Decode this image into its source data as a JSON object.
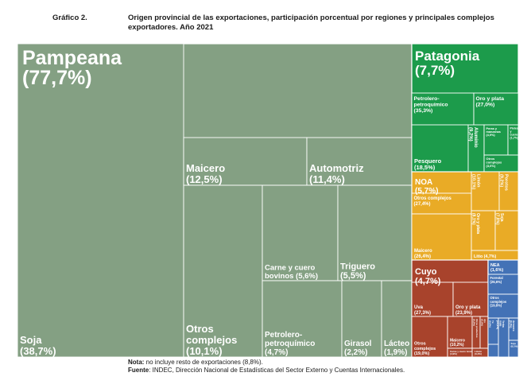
{
  "header": {
    "label": "Gráfico 2.",
    "title": "Origen provincial de las exportaciones, participación porcentual por regiones y principales complejos exportadores. Año 2021"
  },
  "footer": {
    "note_label": "Nota:",
    "note_text": " no incluye resto de exportaciones (8,8%).",
    "source_label": "Fuente",
    "source_text": ": INDEC, Dirección Nacional de Estadísticas del Sector Externo y Cuentas Internacionales."
  },
  "chart_data": {
    "type": "treemap",
    "title": "Origen provincial de las exportaciones, participación porcentual por regiones y principales complejos exportadores. Año 2021",
    "colors": {
      "Pampeana": "#84a083",
      "Patagonia": "#1c9b4b",
      "NOA": "#e9ab26",
      "Cuyo": "#a8432c",
      "NEA": "#4372b6"
    },
    "regions": [
      {
        "name": "Pampeana",
        "value": 77.7,
        "label": "Pampeana\n(77,7%)",
        "children": [
          {
            "name": "Soja",
            "value": 38.7,
            "label": "Soja\n(38,7%)"
          },
          {
            "name": "Maicero",
            "value": 12.5,
            "label": "Maicero\n(12,5%)"
          },
          {
            "name": "Automotriz",
            "value": 11.4,
            "label": "Automotriz\n(11,4%)"
          },
          {
            "name": "Otros complejos",
            "value": 10.1,
            "label": "Otros\ncomplejos\n(10,1%)"
          },
          {
            "name": "Carne y cuero bovinos",
            "value": 5.6,
            "label": "Carne y cuero\nbovinos (5,6%)"
          },
          {
            "name": "Triguero",
            "value": 5.5,
            "label": "Triguero\n(5,5%)"
          },
          {
            "name": "Petrolero-petroquímico",
            "value": 4.7,
            "label": "Petrolero-\npetroquímico\n(4,7%)"
          },
          {
            "name": "Girasol",
            "value": 2.2,
            "label": "Girasol\n(2,2%)"
          },
          {
            "name": "Lácteo",
            "value": 1.9,
            "label": "Lácteo\n(1,9%)"
          }
        ]
      },
      {
        "name": "Patagonia",
        "value": 7.7,
        "label": "Patagonia\n(7,7%)",
        "children": [
          {
            "name": "Petrolero-petroquímico",
            "value": 35.3,
            "label": "Petrolero-\npetroquímico\n(35,3%)"
          },
          {
            "name": "Oro y plata",
            "value": 27.0,
            "label": "Oro y plata\n(27,0%)"
          },
          {
            "name": "Pesquero",
            "value": 18.5,
            "label": "Pesquero\n(18,5%)"
          },
          {
            "name": "Aluminio",
            "value": 9.2,
            "label": "Aluminio\n(9,2%)"
          },
          {
            "name": "Peras y manzanas",
            "value": 4.9,
            "label": "Peras y\nmanzanas\n(4,9%)"
          },
          {
            "name": "Pieles y cueros",
            "value": 1.7,
            "label": "Pieles\ny\ncueros\n(1,7%)"
          },
          {
            "name": "Otros complejos",
            "value": 3.6,
            "label": "Otros\ncomplejos\n(3,6%)"
          }
        ]
      },
      {
        "name": "NOA",
        "value": 5.7,
        "label": "NOA\n(5,7%)",
        "children": [
          {
            "name": "Otros complejos",
            "value": 27.4,
            "label": "Otros complejos\n(27,4%)"
          },
          {
            "name": "Maicero",
            "value": 26.4,
            "label": "Maicero\n(26,4%)"
          },
          {
            "name": "Limón",
            "value": 10.1,
            "label": "Limón\n(10,1%)"
          },
          {
            "name": "Porotos",
            "value": 9.2,
            "label": "Porotos\n(9,2%)"
          },
          {
            "name": "Oro y plata",
            "value": 8.1,
            "label": "Oro y plata\n(8,1%)"
          },
          {
            "name": "Soja",
            "value": 7.8,
            "label": "Soja\n(7,8%)"
          },
          {
            "name": "Litio",
            "value": 4.7,
            "label": "Litio (4,7%)"
          }
        ]
      },
      {
        "name": "Cuyo",
        "value": 4.7,
        "label": "Cuyo\n(4,7%)",
        "children": [
          {
            "name": "Uva",
            "value": 27.3,
            "label": "Uva\n(27,3%)"
          },
          {
            "name": "Oro y plata",
            "value": 23.9,
            "label": "Oro y plata\n(23,9%)"
          },
          {
            "name": "Otros complejos",
            "value": 19.0,
            "label": "Otros\ncomplejos\n(19,0%)"
          },
          {
            "name": "Maicero",
            "value": 10.2,
            "label": "Maicero\n(10,2%)"
          },
          {
            "name": "Carne y cuero bovinos",
            "value": 4.9,
            "label": "Carne y cuero bovinos\n(4,9%)"
          },
          {
            "name": "Otros productos",
            "value": 6.2,
            "label": "Otros productos\n(6,2%)"
          },
          {
            "name": "Ajo",
            "value": 5.1,
            "label": "Ajo\n(5,1%)"
          },
          {
            "name": "Limón",
            "value": 3.4,
            "label": "Limón\n(3,4%)"
          }
        ]
      },
      {
        "name": "NEA",
        "value": 1.6,
        "label": "NEA\n(1,6%)",
        "children": [
          {
            "name": "Forestal",
            "value": 26.6,
            "label": "Forestal\n(26,6%)"
          },
          {
            "name": "Otros complejos",
            "value": 19.8,
            "label": "Otros\ncomplejos\n(19,8%)"
          },
          {
            "name": "Té",
            "value": 9.8,
            "label": "Té\n(9,8%)"
          },
          {
            "name": "Yerba mate",
            "value": 13.1,
            "label": "Yerba\nmate\n(13,1%)"
          },
          {
            "name": "Arrocero",
            "value": 9.6,
            "label": "Arrocero\n(9,6%)"
          },
          {
            "name": "Soja",
            "value": 8.1,
            "label": "Soja\n(8,1%)"
          }
        ]
      }
    ]
  }
}
